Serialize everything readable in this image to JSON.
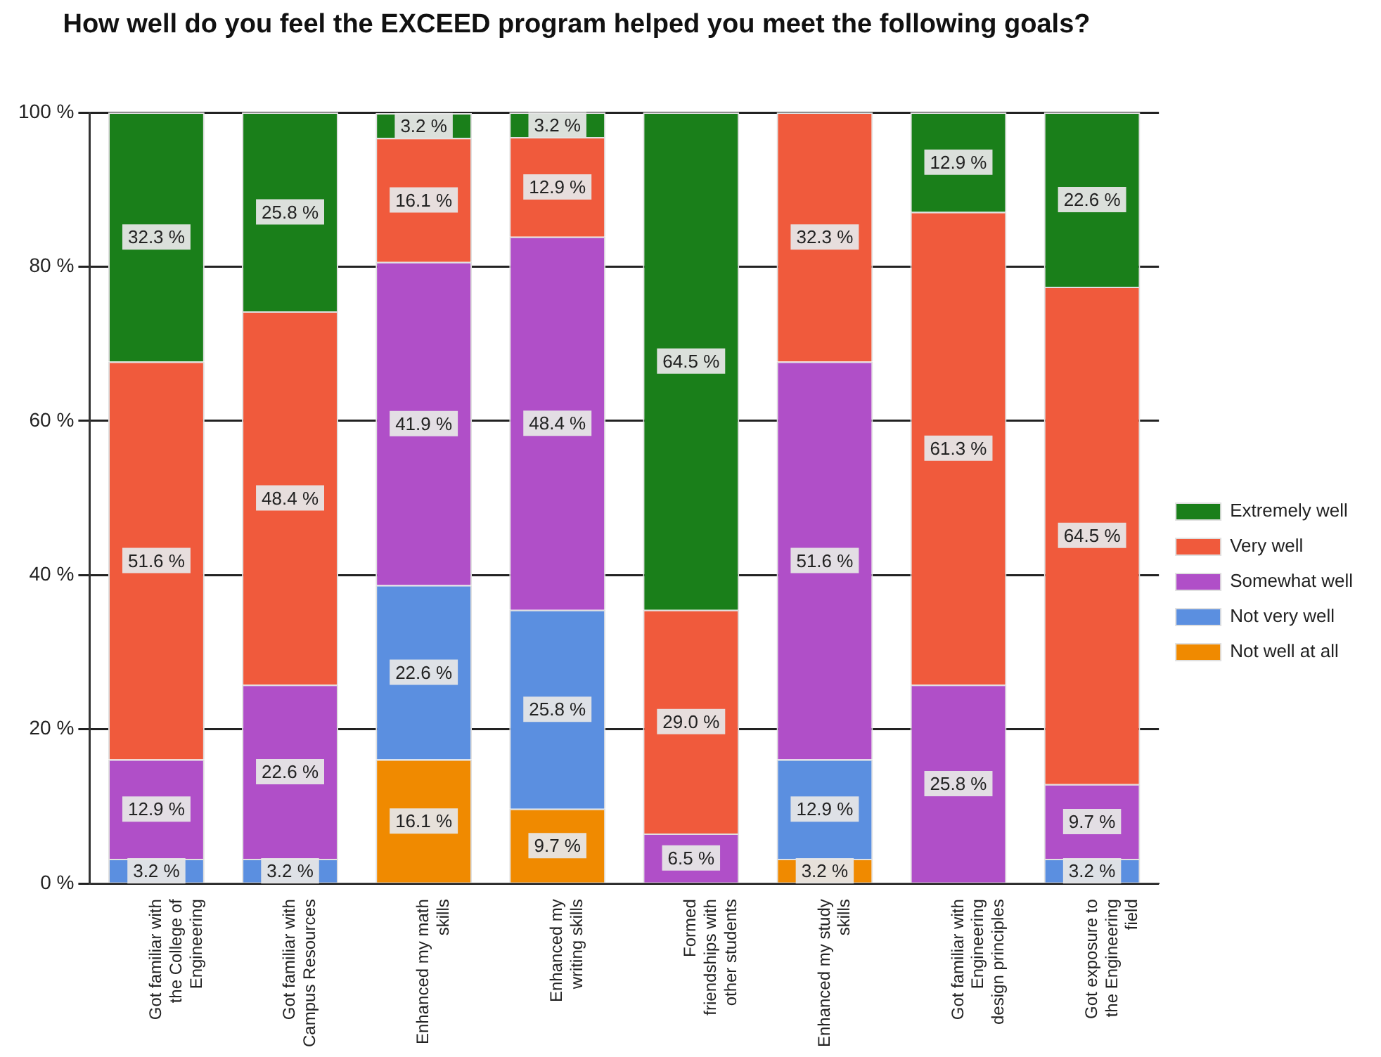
{
  "chart_data": {
    "type": "bar",
    "title": "How well do you feel the EXCEED program helped you meet the following goals?",
    "stacked": true,
    "categories": [
      "Got familiar with the College of Engineering",
      "Got familiar with Campus Resources",
      "Enhanced my math skills",
      "Enhanced my writing skills",
      "Formed friendships with other students",
      "Enhanced my study skills",
      "Got familiar with Engineering design principles",
      "Got exposure to the Engineering field"
    ],
    "series": [
      {
        "name": "Not well at all",
        "color": "#f08a00",
        "values": [
          null,
          null,
          16.1,
          9.7,
          null,
          3.2,
          null,
          null
        ],
        "value_labels": [
          null,
          null,
          "16.1 %",
          "9.7 %",
          null,
          "3.2 %",
          null,
          null
        ]
      },
      {
        "name": "Not very well",
        "color": "#5b8fe0",
        "values": [
          3.2,
          3.2,
          22.6,
          25.8,
          null,
          12.9,
          null,
          3.2
        ],
        "value_labels": [
          "3.2 %",
          "3.2 %",
          "22.6 %",
          "25.8 %",
          null,
          "12.9 %",
          null,
          "3.2 %"
        ]
      },
      {
        "name": "Somewhat well",
        "color": "#b04fc8",
        "values": [
          12.9,
          22.6,
          41.9,
          48.4,
          6.5,
          51.6,
          25.8,
          9.7
        ],
        "value_labels": [
          "12.9 %",
          "22.6 %",
          "41.9 %",
          "48.4 %",
          "6.5 %",
          "51.6 %",
          "25.8 %",
          "9.7 %"
        ]
      },
      {
        "name": "Very well",
        "color": "#f05a3c",
        "values": [
          51.6,
          48.4,
          16.1,
          12.9,
          29.0,
          32.3,
          61.3,
          64.5
        ],
        "value_labels": [
          "51.6 %",
          "48.4 %",
          "16.1 %",
          "12.9 %",
          "29.0 %",
          "32.3 %",
          "61.3 %",
          "64.5 %"
        ]
      },
      {
        "name": "Extremely well",
        "color": "#1a7f1a",
        "values": [
          32.3,
          25.8,
          3.2,
          3.2,
          64.5,
          null,
          12.9,
          22.6
        ],
        "value_labels": [
          "32.3 %",
          "25.8 %",
          "3.2 %",
          "3.2 %",
          "64.5 %",
          null,
          "12.9 %",
          "22.6 %"
        ]
      }
    ],
    "ylim": [
      0,
      100
    ],
    "yticks": [
      {
        "value": 0,
        "label": "0 %"
      },
      {
        "value": 20,
        "label": "20 %"
      },
      {
        "value": 40,
        "label": "40 %"
      },
      {
        "value": 60,
        "label": "60 %"
      },
      {
        "value": 80,
        "label": "80 %"
      },
      {
        "value": 100,
        "label": "100 %"
      }
    ],
    "grid": "y",
    "legend": "right"
  }
}
